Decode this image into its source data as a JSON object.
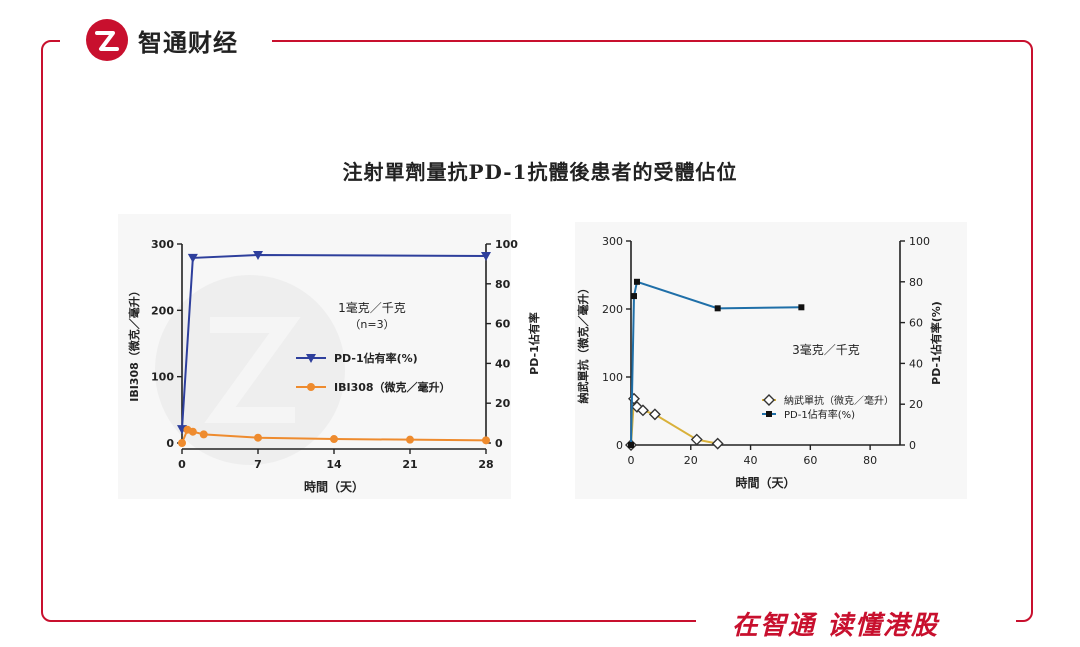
{
  "header": {
    "brand": "智通财经"
  },
  "footer": {
    "slogan": "在智通 读懂港股"
  },
  "title": "注射單劑量抗PD-1抗體後患者的受體佔位",
  "colors": {
    "brand_red": "#c8102e",
    "navy": "#2e3f9c",
    "orange": "#ee8b2e",
    "steel_blue": "#1f6fa8",
    "gold": "#d9b13a"
  },
  "chart_data": [
    {
      "type": "line",
      "xlabel": "時間（天）",
      "ylabel_left": "IBI308（微克／毫升）",
      "ylabel_right": "PD-1佔有率",
      "annotation": "1毫克／千克",
      "annotation_sub": "（n=3）",
      "xlim": [
        0,
        28
      ],
      "ylim_left": [
        0,
        300
      ],
      "ylim_right": [
        0,
        100
      ],
      "x_ticks": [
        0,
        7,
        14,
        21,
        28
      ],
      "y_ticks_left": [
        0,
        100,
        200,
        300
      ],
      "y_ticks_right": [
        0,
        20,
        40,
        60,
        80,
        100
      ],
      "legend": [
        "PD-1佔有率(%)",
        "IBI308（微克／毫升）"
      ],
      "series": [
        {
          "name": "PD-1佔有率(%)",
          "axis": "right",
          "marker": "triangle-down",
          "color": "#2e3f9c",
          "x": [
            0,
            1,
            7,
            28
          ],
          "y": [
            7,
            93,
            94.5,
            94
          ]
        },
        {
          "name": "IBI308（微克／毫升）",
          "axis": "left",
          "marker": "circle",
          "color": "#ee8b2e",
          "x": [
            0,
            0.5,
            1,
            2,
            7,
            14,
            21,
            28
          ],
          "y": [
            0,
            20,
            17,
            13,
            8,
            6,
            5,
            4
          ]
        }
      ]
    },
    {
      "type": "line",
      "xlabel": "時間（天）",
      "ylabel_left": "納武單抗（微克／毫升）",
      "ylabel_right": "PD-1佔有率(%)",
      "annotation": "3毫克／千克",
      "xlim": [
        0,
        90
      ],
      "ylim_left": [
        0,
        300
      ],
      "ylim_right": [
        0,
        100
      ],
      "x_ticks": [
        0,
        20,
        40,
        60,
        80
      ],
      "y_ticks_left": [
        0,
        100,
        200,
        300
      ],
      "y_ticks_right": [
        0,
        20,
        40,
        60,
        80,
        100
      ],
      "legend": [
        "納武單抗（微克／毫升）",
        "PD-1佔有率(%)"
      ],
      "series": [
        {
          "name": "納武單抗（微克／毫升）",
          "axis": "left",
          "marker": "diamond",
          "color": "#d9b13a",
          "x": [
            0,
            1,
            2,
            4,
            8,
            22,
            29
          ],
          "y": [
            0,
            68,
            56,
            51,
            45,
            8,
            2
          ]
        },
        {
          "name": "PD-1佔有率(%)",
          "axis": "right",
          "marker": "square",
          "color": "#1f6fa8",
          "x": [
            0,
            1,
            2,
            29,
            57
          ],
          "y": [
            0,
            73,
            80,
            67,
            67.5
          ]
        }
      ]
    }
  ]
}
